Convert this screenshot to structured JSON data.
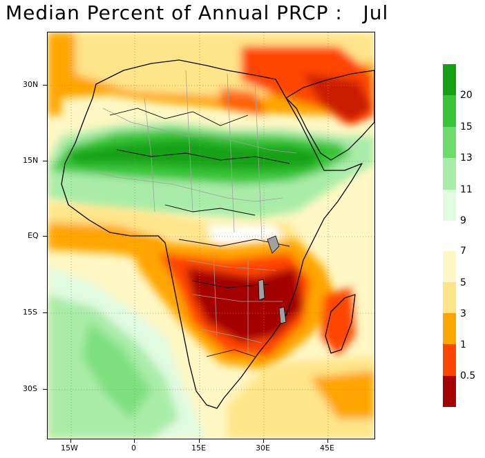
{
  "title": "Median Percent of Annual PRCP :   Jul",
  "map": {
    "lat_ticks": [
      "30N",
      "15N",
      "EQ",
      "15S",
      "30S"
    ],
    "lon_ticks": [
      "15W",
      "0",
      "15E",
      "30E",
      "45E"
    ]
  },
  "colorbar": {
    "wet_labels": [
      "20",
      "15",
      "13",
      "11",
      "9"
    ],
    "dry_labels": [
      "7",
      "5",
      "3",
      "1",
      "0.5"
    ],
    "wet_colors": [
      "#13a113",
      "#38c438",
      "#6ddc6d",
      "#a9eca9",
      "#e1fbe1"
    ],
    "dry_colors": [
      "#fff8c4",
      "#ffe58a",
      "#ffa500",
      "#ff4500",
      "#a50000"
    ]
  },
  "colors": {
    "ocean_dry_orange": "#ffa500",
    "ocean_light": "#ffe58a",
    "land_border": "#000000",
    "admin_border": "#a0a0a0",
    "grid": "#8a8a8a"
  }
}
